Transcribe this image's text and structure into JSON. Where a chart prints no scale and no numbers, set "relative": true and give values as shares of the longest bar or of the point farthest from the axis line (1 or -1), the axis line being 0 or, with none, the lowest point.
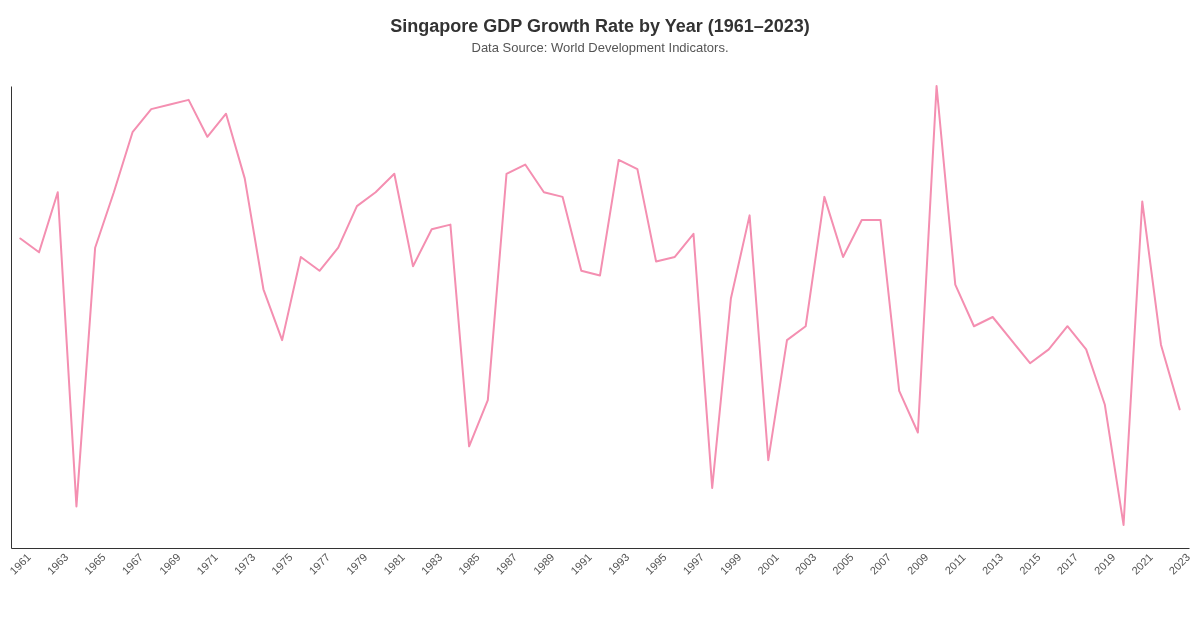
{
  "chart_data": {
    "type": "line",
    "title": "Singapore GDP Growth Rate by Year (1961–2023)",
    "subtitle": "Data Source: World Development Indicators.",
    "categories": [
      "1961",
      null,
      "1963",
      null,
      "1965",
      null,
      "1967",
      null,
      "1969",
      null,
      "1971",
      null,
      "1973",
      null,
      "1975",
      null,
      "1977",
      null,
      "1979",
      null,
      "1981",
      null,
      "1983",
      null,
      "1985",
      null,
      "1987",
      null,
      "1989",
      null,
      "1991",
      null,
      "1993",
      null,
      "1995",
      null,
      "1997",
      null,
      "1999",
      null,
      "2001",
      null,
      "2003",
      null,
      "2005",
      null,
      "2007",
      null,
      "2009",
      null,
      "2011",
      null,
      "2013",
      null,
      "2015",
      null,
      "2017",
      null,
      "2019",
      null,
      "2021",
      null,
      "2023"
    ],
    "series": [
      {
        "color": "#f48fb1",
        "values": [
          0.67,
          0.64,
          0.77,
          0.09,
          0.65,
          0.77,
          0.9,
          0.95,
          0.96,
          0.97,
          0.89,
          0.94,
          0.8,
          0.56,
          0.45,
          0.63,
          0.6,
          0.65,
          0.74,
          0.77,
          0.81,
          0.61,
          0.69,
          0.7,
          0.22,
          0.32,
          0.81,
          0.83,
          0.77,
          0.76,
          0.6,
          0.59,
          0.84,
          0.82,
          0.62,
          0.63,
          0.68,
          0.13,
          0.54,
          0.72,
          0.19,
          0.45,
          0.48,
          0.76,
          0.63,
          0.71,
          0.71,
          0.34,
          0.25,
          1,
          0.57,
          0.48,
          0.5,
          0.45,
          0.4,
          0.43,
          0.48,
          0.43,
          0.31,
          0.05,
          0.75,
          0.44,
          0.3
        ]
      }
    ],
    "relative": true,
    "grid": false,
    "marker": "none",
    "line_style": "solid"
  }
}
